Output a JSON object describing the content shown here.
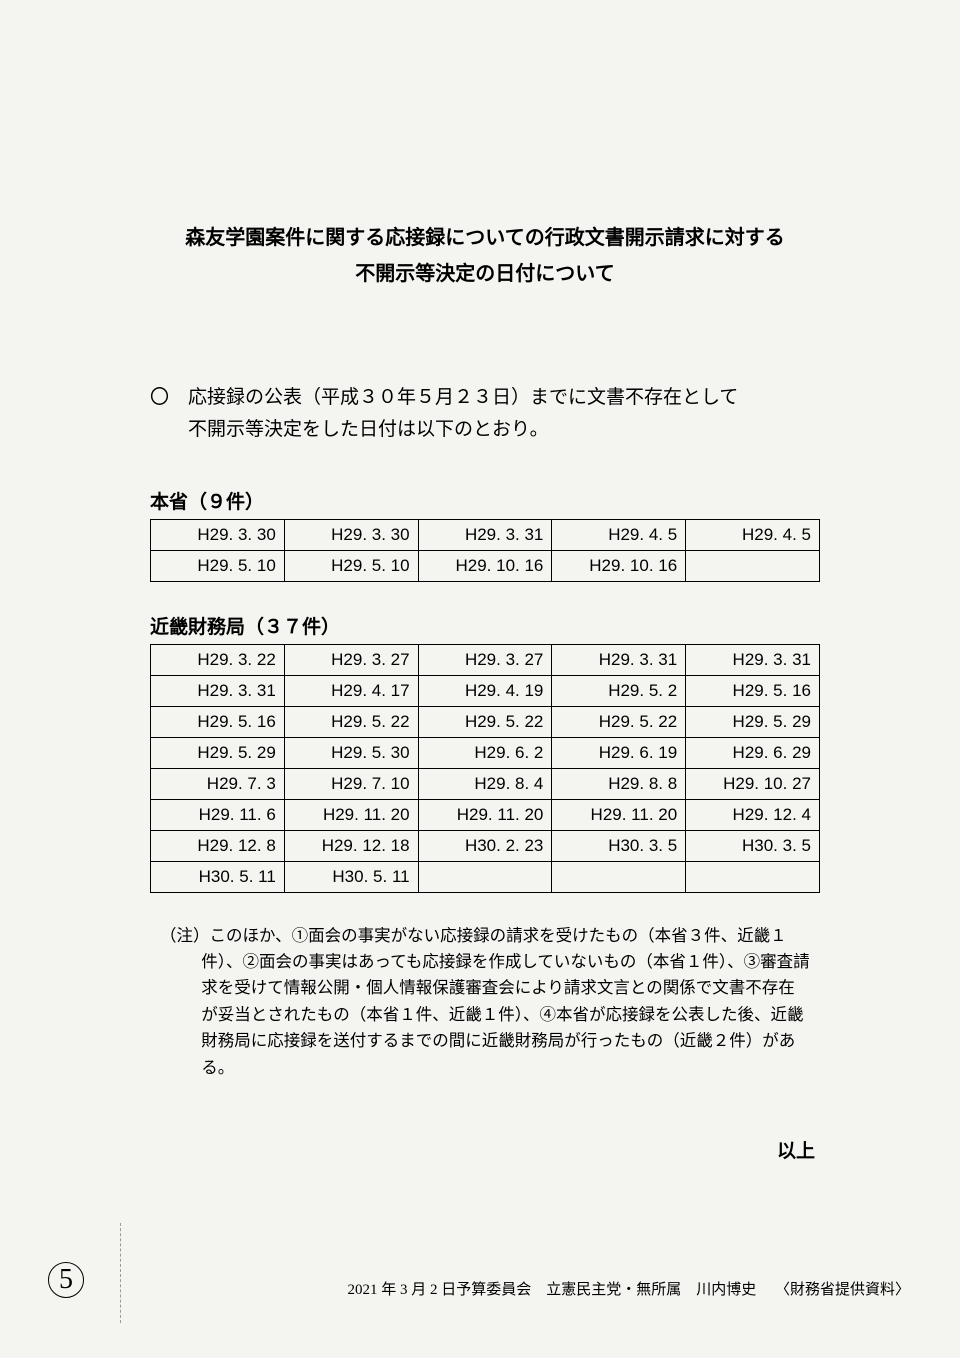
{
  "title_line1": "森友学園案件に関する応接録についての行政文書開示請求に対する",
  "title_line2": "不開示等決定の日付について",
  "lead_line1": "〇　応接録の公表（平成３０年５月２３日）までに文書不存在として",
  "lead_line2": "不開示等決定をした日付は以下のとおり。",
  "table1": {
    "header": "本省（９件）",
    "rows": [
      [
        "H29. 3. 30",
        "H29. 3. 30",
        "H29. 3. 31",
        "H29. 4. 5",
        "H29. 4. 5"
      ],
      [
        "H29. 5. 10",
        "H29. 5. 10",
        "H29. 10. 16",
        "H29. 10. 16",
        ""
      ]
    ]
  },
  "table2": {
    "header": "近畿財務局（３７件）",
    "rows": [
      [
        "H29. 3. 22",
        "H29. 3. 27",
        "H29. 3. 27",
        "H29. 3. 31",
        "H29. 3. 31"
      ],
      [
        "H29. 3. 31",
        "H29. 4. 17",
        "H29. 4. 19",
        "H29. 5. 2",
        "H29. 5. 16"
      ],
      [
        "H29. 5. 16",
        "H29. 5. 22",
        "H29. 5. 22",
        "H29. 5. 22",
        "H29. 5. 29"
      ],
      [
        "H29. 5. 29",
        "H29. 5. 30",
        "H29. 6. 2",
        "H29. 6. 19",
        "H29. 6. 29"
      ],
      [
        "H29. 7. 3",
        "H29. 7. 10",
        "H29. 8. 4",
        "H29. 8. 8",
        "H29. 10. 27"
      ],
      [
        "H29. 11. 6",
        "H29. 11. 20",
        "H29. 11. 20",
        "H29. 11. 20",
        "H29. 12. 4"
      ],
      [
        "H29. 12. 8",
        "H29. 12. 18",
        "H30. 2. 23",
        "H30. 3. 5",
        "H30. 3. 5"
      ],
      [
        "H30. 5. 11",
        "H30. 5. 11",
        "",
        "",
        ""
      ]
    ]
  },
  "note": "（注）このほか、①面会の事実がない応接録の請求を受けたもの（本省３件、近畿１件）、②面会の事実はあっても応接録を作成していないもの（本省１件）、③審査請求を受けて情報公開・個人情報保護審査会により請求文言との関係で文書不存在が妥当とされたもの（本省１件、近畿１件）、④本省が応接録を公表した後、近畿財務局に応接録を送付するまでの間に近畿財務局が行ったもの（近畿２件）がある。",
  "closing": "以上",
  "footer": {
    "page_no": "5",
    "text": "2021 年 3 月 2 日予算委員会　立憲民主党・無所属　川内博史",
    "source": "〈財務省提供資料〉"
  }
}
